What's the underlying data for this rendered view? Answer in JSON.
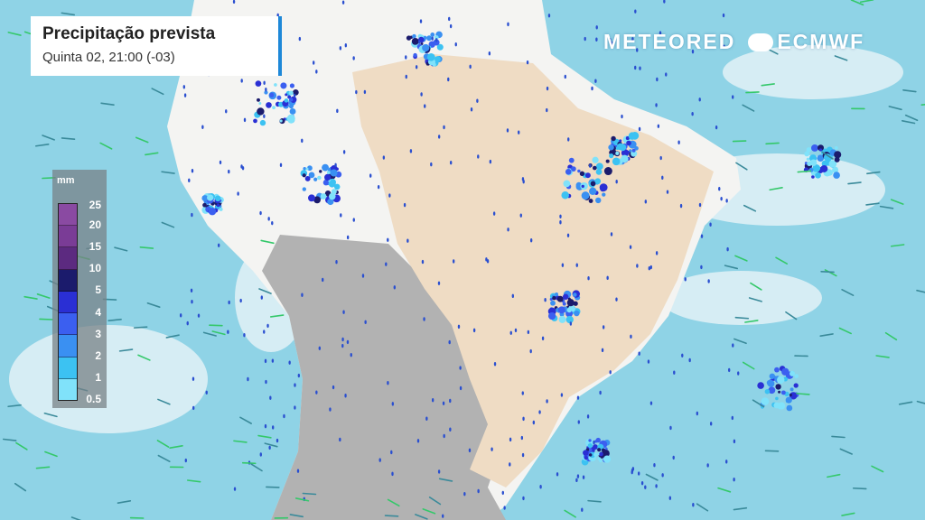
{
  "title": "Precipitação prevista",
  "subtitle": "Quinta 02, 21:00 (-03)",
  "logo": {
    "left": "METEORED",
    "right": "ECMWF"
  },
  "legend": {
    "unit": "mm",
    "labels": [
      "25",
      "20",
      "15",
      "10",
      "5",
      "4",
      "3",
      "2",
      "1",
      "0.5"
    ],
    "colors": [
      "#8a4aa2",
      "#7a3c96",
      "#5c2a80",
      "#1b1b6c",
      "#2a2fd4",
      "#3b5ff0",
      "#3a90f2",
      "#3cc2f2",
      "#80e2fa"
    ]
  },
  "map_colors": {
    "ocean": "#8fd3e6",
    "land_dry": "#efdcc4",
    "land_gray": "#a9a9a9",
    "cloud": "#eef6f8",
    "wind": "#34c86a"
  }
}
